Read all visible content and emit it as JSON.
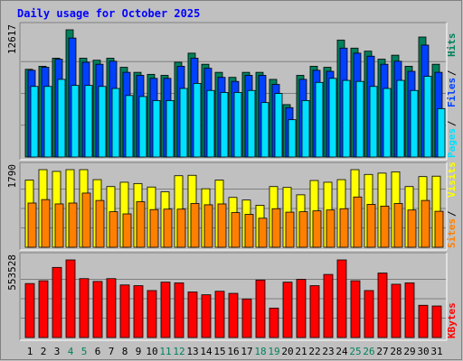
{
  "title": "Daily usage for October 2025",
  "colors": {
    "background": "#C0C0C0",
    "panel": "#C0C0C0",
    "grid": "#808080",
    "hits": "#00805C",
    "files": "#0040FF",
    "pages": "#00E0FF",
    "visits": "#FFFF00",
    "sites": "#FF8000",
    "kbytes": "#FF0000",
    "title": "#0000FF",
    "weekend_label": "#00805C",
    "weekday_label": "#000080"
  },
  "chart_data": [
    {
      "type": "bar",
      "panel": "top",
      "y_max_label": "12617",
      "ylim": [
        0,
        12617
      ],
      "categories": [
        "1",
        "2",
        "3",
        "4",
        "5",
        "6",
        "7",
        "8",
        "9",
        "10",
        "11",
        "12",
        "13",
        "14",
        "15",
        "16",
        "17",
        "18",
        "19",
        "20",
        "21",
        "22",
        "23",
        "24",
        "25",
        "26",
        "27",
        "28",
        "29",
        "30",
        "31"
      ],
      "weekend_days": [
        4,
        5,
        11,
        12,
        18,
        19,
        25,
        26
      ],
      "legend": [
        "Pages",
        "Files",
        "Hits"
      ],
      "series": [
        {
          "name": "Hits",
          "values": [
            8700,
            9000,
            9800,
            12617,
            9800,
            9600,
            9800,
            8900,
            8400,
            8200,
            8100,
            9400,
            10300,
            9200,
            8400,
            7900,
            8400,
            8400,
            7700,
            5200,
            8100,
            9000,
            8900,
            11600,
            10800,
            10500,
            9700,
            10100,
            9000,
            11900,
            9200
          ]
        },
        {
          "name": "Files",
          "values": [
            8600,
            8900,
            9700,
            11800,
            9400,
            9200,
            9500,
            8400,
            8100,
            7800,
            7800,
            9000,
            9800,
            8800,
            7900,
            7500,
            8100,
            8100,
            7200,
            4900,
            7700,
            8600,
            8500,
            10800,
            10300,
            10000,
            9200,
            9500,
            8500,
            11100,
            8400
          ]
        },
        {
          "name": "Pages",
          "values": [
            7000,
            7000,
            7700,
            7100,
            7100,
            7000,
            6800,
            6100,
            6000,
            5600,
            5600,
            6800,
            7300,
            6600,
            6400,
            6400,
            6600,
            5400,
            6300,
            3700,
            5600,
            7400,
            7800,
            7600,
            7500,
            7000,
            6800,
            7600,
            6600,
            8000,
            4800
          ]
        }
      ]
    },
    {
      "type": "bar",
      "panel": "middle",
      "y_max_label": "1790",
      "ylim": [
        0,
        1790
      ],
      "categories": [
        "1",
        "2",
        "3",
        "4",
        "5",
        "6",
        "7",
        "8",
        "9",
        "10",
        "11",
        "12",
        "13",
        "14",
        "15",
        "16",
        "17",
        "18",
        "19",
        "20",
        "21",
        "22",
        "23",
        "24",
        "25",
        "26",
        "27",
        "28",
        "29",
        "30",
        "31"
      ],
      "legend": [
        "Sites",
        "Visits"
      ],
      "series": [
        {
          "name": "Visits",
          "values": [
            1550,
            1790,
            1750,
            1790,
            1790,
            1560,
            1400,
            1500,
            1470,
            1390,
            1280,
            1650,
            1660,
            1350,
            1550,
            1150,
            1090,
            970,
            1400,
            1380,
            1210,
            1540,
            1500,
            1560,
            1790,
            1680,
            1710,
            1740,
            1400,
            1630,
            1640
          ]
        },
        {
          "name": "Sites",
          "values": [
            1020,
            1100,
            1000,
            1020,
            1250,
            1080,
            820,
            770,
            1050,
            870,
            880,
            880,
            1010,
            980,
            1000,
            800,
            760,
            670,
            890,
            810,
            820,
            840,
            860,
            890,
            1160,
            990,
            950,
            1010,
            860,
            1080,
            830
          ]
        }
      ]
    },
    {
      "type": "bar",
      "panel": "bottom",
      "y_max_label": "553528",
      "ylim": [
        0,
        553528
      ],
      "categories": [
        "1",
        "2",
        "3",
        "4",
        "5",
        "6",
        "7",
        "8",
        "9",
        "10",
        "11",
        "12",
        "13",
        "14",
        "15",
        "16",
        "17",
        "18",
        "19",
        "20",
        "21",
        "22",
        "23",
        "24",
        "25",
        "26",
        "27",
        "28",
        "29",
        "30",
        "31"
      ],
      "legend": [
        "KBytes"
      ],
      "series": [
        {
          "name": "KBytes",
          "values": [
            385000,
            405000,
            500000,
            553528,
            420000,
            400000,
            420000,
            375000,
            370000,
            335000,
            395000,
            390000,
            325000,
            305000,
            330000,
            315000,
            275000,
            410000,
            210000,
            395000,
            415000,
            370000,
            450000,
            553528,
            405000,
            335000,
            460000,
            380000,
            390000,
            230000,
            225000
          ]
        }
      ]
    }
  ]
}
